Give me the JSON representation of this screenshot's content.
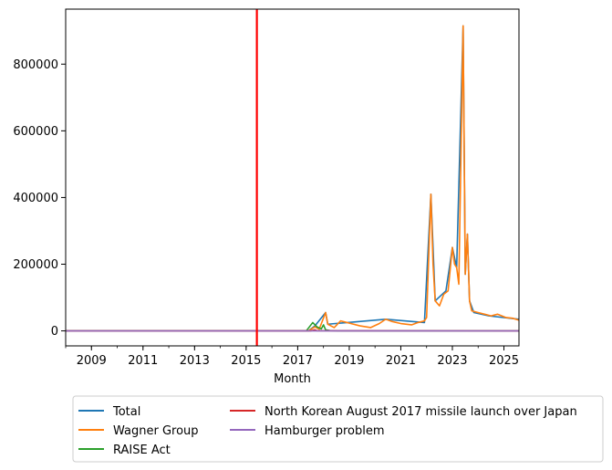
{
  "chart_data": {
    "type": "line",
    "xlabel": "Month",
    "ylabel": "",
    "xlim": [
      "2008-01",
      "2025-08"
    ],
    "ylim": [
      -45000,
      965000
    ],
    "x_ticks": [
      "2009",
      "2011",
      "2013",
      "2015",
      "2017",
      "2019",
      "2021",
      "2023",
      "2025"
    ],
    "y_ticks": [
      "0",
      "200000",
      "400000",
      "600000",
      "800000"
    ],
    "y_tick_values": [
      0,
      200000,
      400000,
      600000,
      800000
    ],
    "grid": false,
    "legend": {
      "placement": "below",
      "columns": 2,
      "entries": [
        "Total",
        "Wagner Group",
        "RAISE Act",
        "North Korean August 2017 missile launch over Japan",
        "Hamburger problem"
      ]
    },
    "vline": {
      "x": "2015-06",
      "color": "#ff0000"
    },
    "series": [
      {
        "name": "Total",
        "color": "#1f77b4",
        "x": [
          "2008-01",
          "2017-06",
          "2017-09",
          "2018-02",
          "2018-03",
          "2018-12",
          "2020-06",
          "2021-12",
          "2022-03",
          "2022-05",
          "2022-10",
          "2023-01",
          "2023-03",
          "2023-06",
          "2023-07",
          "2023-08",
          "2023-09",
          "2023-11",
          "2024-06",
          "2025-08"
        ],
        "values": [
          0,
          0,
          15000,
          55000,
          20000,
          25000,
          35000,
          25000,
          410000,
          90000,
          120000,
          250000,
          190000,
          915000,
          170000,
          290000,
          90000,
          55000,
          45000,
          35000
        ]
      },
      {
        "name": "Wagner Group",
        "color": "#ff7f0e",
        "x": [
          "2008-01",
          "2017-06",
          "2017-09",
          "2017-11",
          "2018-02",
          "2018-03",
          "2018-06",
          "2018-09",
          "2018-12",
          "2019-06",
          "2019-11",
          "2020-03",
          "2020-06",
          "2020-09",
          "2021-01",
          "2021-06",
          "2021-09",
          "2021-12",
          "2022-01",
          "2022-03",
          "2022-04",
          "2022-05",
          "2022-07",
          "2022-09",
          "2022-11",
          "2023-01",
          "2023-02",
          "2023-03",
          "2023-04",
          "2023-06",
          "2023-07",
          "2023-08",
          "2023-09",
          "2023-10",
          "2024-01",
          "2024-04",
          "2024-07",
          "2024-10",
          "2025-02",
          "2025-05",
          "2025-08"
        ],
        "values": [
          0,
          0,
          12000,
          5000,
          55000,
          20000,
          10000,
          30000,
          25000,
          15000,
          10000,
          22000,
          35000,
          28000,
          22000,
          18000,
          25000,
          30000,
          40000,
          410000,
          200000,
          90000,
          75000,
          110000,
          120000,
          250000,
          200000,
          190000,
          140000,
          915000,
          170000,
          290000,
          90000,
          60000,
          55000,
          50000,
          45000,
          50000,
          40000,
          38000,
          32000
        ]
      },
      {
        "name": "RAISE Act",
        "color": "#2ca02c",
        "x": [
          "2008-01",
          "2017-05",
          "2017-08",
          "2017-10",
          "2017-12",
          "2018-01",
          "2018-02",
          "2018-04",
          "2018-08",
          "2025-08"
        ],
        "values": [
          0,
          0,
          25000,
          12000,
          6000,
          18000,
          3000,
          1000,
          0,
          0
        ]
      },
      {
        "name": "North Korean August 2017 missile launch over Japan",
        "color": "#d62728",
        "x": [
          "2008-01",
          "2017-07",
          "2017-08",
          "2017-09",
          "2017-10",
          "2025-08"
        ],
        "values": [
          0,
          0,
          1500,
          3000,
          500,
          0
        ]
      },
      {
        "name": "Hamburger problem",
        "color": "#9467bd",
        "x": [
          "2008-01",
          "2025-08"
        ],
        "values": [
          0,
          0
        ]
      }
    ]
  }
}
